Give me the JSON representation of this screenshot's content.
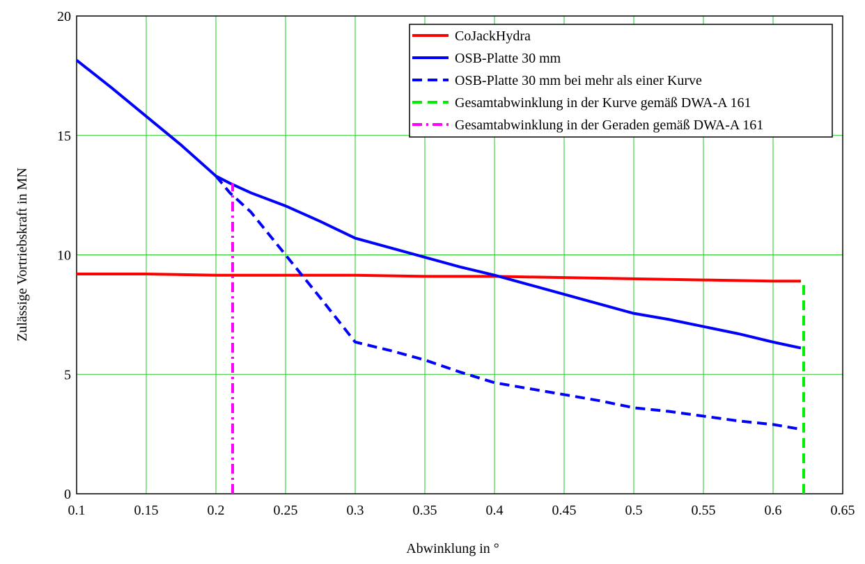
{
  "chart_data": {
    "type": "line",
    "xlabel": "Abwinklung in °",
    "ylabel": "Zulässige Vortriebskraft in MN",
    "xlim": [
      0.1,
      0.65
    ],
    "ylim": [
      0,
      20
    ],
    "xticks": [
      0.1,
      0.15,
      0.2,
      0.25,
      0.3,
      0.35,
      0.4,
      0.45,
      0.5,
      0.55,
      0.6,
      0.65
    ],
    "yticks": [
      0,
      5,
      10,
      15,
      20
    ],
    "grid": true,
    "grid_color": "#22cc22",
    "legend": "upper right",
    "series": [
      {
        "name": "CoJackHydra",
        "color": "#ff0000",
        "dash": "solid",
        "x": [
          0.1,
          0.15,
          0.2,
          0.25,
          0.3,
          0.35,
          0.4,
          0.45,
          0.5,
          0.55,
          0.6,
          0.62
        ],
        "values": [
          9.2,
          9.2,
          9.15,
          9.15,
          9.15,
          9.1,
          9.1,
          9.05,
          9.0,
          8.95,
          8.9,
          8.9
        ]
      },
      {
        "name": "OSB-Platte 30 mm",
        "color": "#0000ff",
        "dash": "solid",
        "x": [
          0.1,
          0.125,
          0.15,
          0.175,
          0.2,
          0.21,
          0.225,
          0.25,
          0.275,
          0.3,
          0.325,
          0.35,
          0.375,
          0.4,
          0.425,
          0.45,
          0.475,
          0.5,
          0.525,
          0.55,
          0.575,
          0.6,
          0.62
        ],
        "values": [
          18.15,
          17.0,
          15.8,
          14.6,
          13.3,
          13.0,
          12.6,
          12.05,
          11.4,
          10.7,
          10.3,
          9.9,
          9.5,
          9.15,
          8.75,
          8.35,
          7.95,
          7.55,
          7.3,
          7.0,
          6.7,
          6.35,
          6.1
        ]
      },
      {
        "name": "OSB-Platte 30 mm bei mehr als einer Kurve",
        "color": "#0000ff",
        "dash": "dashed",
        "x": [
          0.2,
          0.21,
          0.225,
          0.25,
          0.275,
          0.3,
          0.325,
          0.35,
          0.375,
          0.4,
          0.425,
          0.45,
          0.475,
          0.5,
          0.525,
          0.55,
          0.575,
          0.6,
          0.62
        ],
        "values": [
          13.3,
          12.6,
          11.8,
          10.0,
          8.2,
          6.35,
          6.0,
          5.6,
          5.1,
          4.65,
          4.4,
          4.15,
          3.9,
          3.6,
          3.45,
          3.25,
          3.05,
          2.9,
          2.7
        ]
      },
      {
        "name": "Gesamtabwinklung in der Kurve gemäß DWA-A 161",
        "color": "#00ee00",
        "dash": "dashed",
        "x": [
          0.622,
          0.622
        ],
        "values": [
          0,
          8.9
        ]
      },
      {
        "name": "Gesamtabwinklung in der Geraden gemäß DWA-A 161",
        "color": "#ff00ff",
        "dash": "dashdot",
        "x": [
          0.212,
          0.212
        ],
        "values": [
          0,
          13.0
        ]
      }
    ]
  }
}
